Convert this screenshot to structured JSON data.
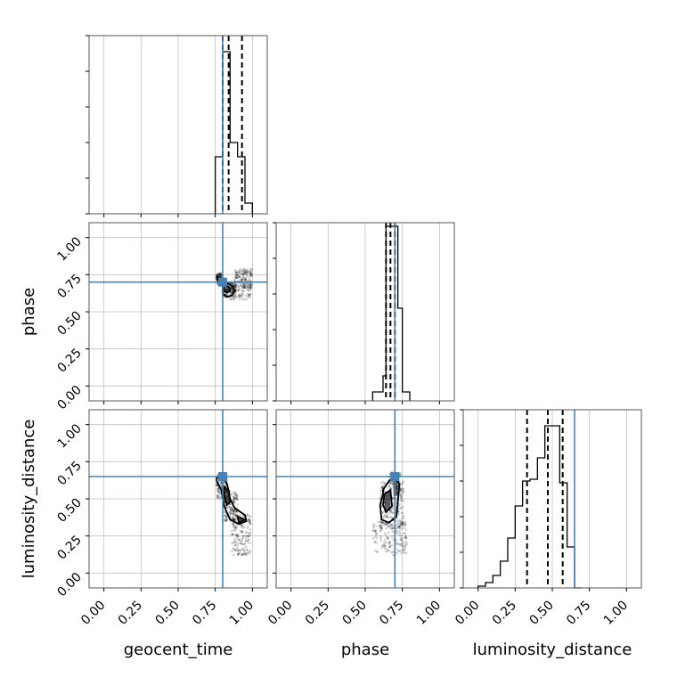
{
  "chart_data": {
    "type": "corner",
    "parameters": [
      "geocent_time",
      "phase",
      "luminosity_distance"
    ],
    "axis_range": [
      -0.1,
      1.1
    ],
    "tick_values": [
      0.0,
      0.25,
      0.5,
      0.75,
      1.0
    ],
    "tick_labels": [
      "0.00",
      "0.25",
      "0.50",
      "0.75",
      "1.00"
    ],
    "grid": true,
    "colors": {
      "hist": "#000000",
      "truth": "#4682b4",
      "quantile": "#000000",
      "grid": "#c0c0c0"
    },
    "truths": {
      "geocent_time": 0.8,
      "phase": 0.7,
      "luminosity_distance": 0.65
    },
    "histograms": [
      {
        "param": "geocent_time",
        "bin_edges": [
          0.75,
          0.8,
          0.85,
          0.9,
          0.95,
          1.0
        ],
        "counts": [
          0.32,
          0.91,
          0.4,
          0.32,
          0.06
        ],
        "quantiles": [
          0.8,
          0.84,
          0.93
        ]
      },
      {
        "param": "phase",
        "bin_edges": [
          0.55,
          0.62,
          0.64,
          0.66,
          0.68,
          0.7,
          0.72,
          0.75,
          0.8
        ],
        "counts": [
          0.05,
          0.14,
          0.98,
          0.98,
          0.98,
          0.98,
          0.52,
          0.05
        ],
        "quantiles": [
          0.64,
          0.67,
          0.7
        ]
      },
      {
        "param": "luminosity_distance",
        "bin_edges": [
          0.0,
          0.05,
          0.1,
          0.15,
          0.2,
          0.25,
          0.3,
          0.35,
          0.4,
          0.45,
          0.5,
          0.55,
          0.6,
          0.65,
          0.7
        ],
        "counts": [
          0.01,
          0.03,
          0.07,
          0.15,
          0.28,
          0.46,
          0.6,
          0.61,
          0.73,
          0.91,
          0.91,
          0.59,
          0.23,
          0.0
        ],
        "quantiles": [
          0.33,
          0.47,
          0.57
        ]
      }
    ],
    "scatter_panels": [
      {
        "x_param": "geocent_time",
        "y_param": "phase",
        "contours": [
          [
            [
              0.76,
              0.74
            ],
            [
              0.8,
              0.72
            ],
            [
              0.82,
              0.7
            ],
            [
              0.87,
              0.67
            ],
            [
              0.88,
              0.64
            ],
            [
              0.86,
              0.61
            ],
            [
              0.83,
              0.6
            ],
            [
              0.8,
              0.62
            ],
            [
              0.8,
              0.67
            ],
            [
              0.76,
              0.72
            ]
          ],
          [
            [
              0.8,
              0.68
            ],
            [
              0.84,
              0.67
            ],
            [
              0.85,
              0.64
            ],
            [
              0.83,
              0.63
            ],
            [
              0.81,
              0.64
            ]
          ]
        ],
        "fills": [
          [
            [
              0.81,
              0.67
            ],
            [
              0.84,
              0.67
            ],
            [
              0.84,
              0.63
            ],
            [
              0.81,
              0.63
            ]
          ]
        ],
        "cloud": [
          {
            "x": [
              0.76,
              0.8
            ],
            "y": [
              0.68,
              0.76
            ],
            "n": 90
          },
          {
            "x": [
              0.8,
              0.89
            ],
            "y": [
              0.6,
              0.7
            ],
            "n": 150
          },
          {
            "x": [
              0.88,
              1.0
            ],
            "y": [
              0.66,
              0.79
            ],
            "n": 160
          },
          {
            "x": [
              0.85,
              0.99
            ],
            "y": [
              0.58,
              0.68
            ],
            "n": 70
          }
        ]
      },
      {
        "x_param": "geocent_time",
        "y_param": "luminosity_distance",
        "contours": [
          [
            [
              0.76,
              0.64
            ],
            [
              0.8,
              0.65
            ],
            [
              0.83,
              0.6
            ],
            [
              0.85,
              0.5
            ],
            [
              0.88,
              0.44
            ],
            [
              0.95,
              0.39
            ],
            [
              0.96,
              0.35
            ],
            [
              0.91,
              0.33
            ],
            [
              0.85,
              0.36
            ],
            [
              0.81,
              0.45
            ],
            [
              0.79,
              0.56
            ],
            [
              0.76,
              0.62
            ]
          ],
          [
            [
              0.81,
              0.58
            ],
            [
              0.84,
              0.55
            ],
            [
              0.85,
              0.48
            ],
            [
              0.83,
              0.46
            ],
            [
              0.81,
              0.52
            ]
          ],
          [
            [
              0.9,
              0.38
            ],
            [
              0.95,
              0.36
            ],
            [
              0.91,
              0.34
            ]
          ]
        ],
        "fills": [
          [
            [
              0.81,
              0.56
            ],
            [
              0.85,
              0.56
            ],
            [
              0.85,
              0.47
            ],
            [
              0.81,
              0.47
            ]
          ],
          [
            [
              0.91,
              0.38
            ],
            [
              0.95,
              0.36
            ],
            [
              0.91,
              0.34
            ]
          ]
        ],
        "cloud": [
          {
            "x": [
              0.76,
              0.83
            ],
            "y": [
              0.5,
              0.67
            ],
            "n": 140
          },
          {
            "x": [
              0.81,
              0.9
            ],
            "y": [
              0.35,
              0.55
            ],
            "n": 160
          },
          {
            "x": [
              0.86,
              0.99
            ],
            "y": [
              0.12,
              0.4
            ],
            "n": 170
          }
        ]
      },
      {
        "x_param": "phase",
        "y_param": "luminosity_distance",
        "contours": [
          [
            [
              0.62,
              0.56
            ],
            [
              0.66,
              0.62
            ],
            [
              0.7,
              0.65
            ],
            [
              0.73,
              0.6
            ],
            [
              0.72,
              0.48
            ],
            [
              0.71,
              0.38
            ],
            [
              0.66,
              0.34
            ],
            [
              0.61,
              0.36
            ],
            [
              0.6,
              0.46
            ],
            [
              0.62,
              0.53
            ]
          ],
          [
            [
              0.63,
              0.53
            ],
            [
              0.67,
              0.56
            ],
            [
              0.68,
              0.45
            ],
            [
              0.64,
              0.41
            ],
            [
              0.62,
              0.46
            ]
          ]
        ],
        "fills": [
          [
            [
              0.63,
              0.55
            ],
            [
              0.67,
              0.55
            ],
            [
              0.67,
              0.42
            ],
            [
              0.63,
              0.42
            ]
          ],
          [
            [
              0.69,
              0.62
            ],
            [
              0.72,
              0.62
            ],
            [
              0.72,
              0.52
            ],
            [
              0.69,
              0.52
            ]
          ]
        ],
        "cloud": [
          {
            "x": [
              0.6,
              0.76
            ],
            "y": [
              0.3,
              0.62
            ],
            "n": 230
          },
          {
            "x": [
              0.55,
              0.78
            ],
            "y": [
              0.12,
              0.35
            ],
            "n": 160
          },
          {
            "x": [
              0.66,
              0.74
            ],
            "y": [
              0.55,
              0.68
            ],
            "n": 60
          }
        ]
      }
    ]
  }
}
